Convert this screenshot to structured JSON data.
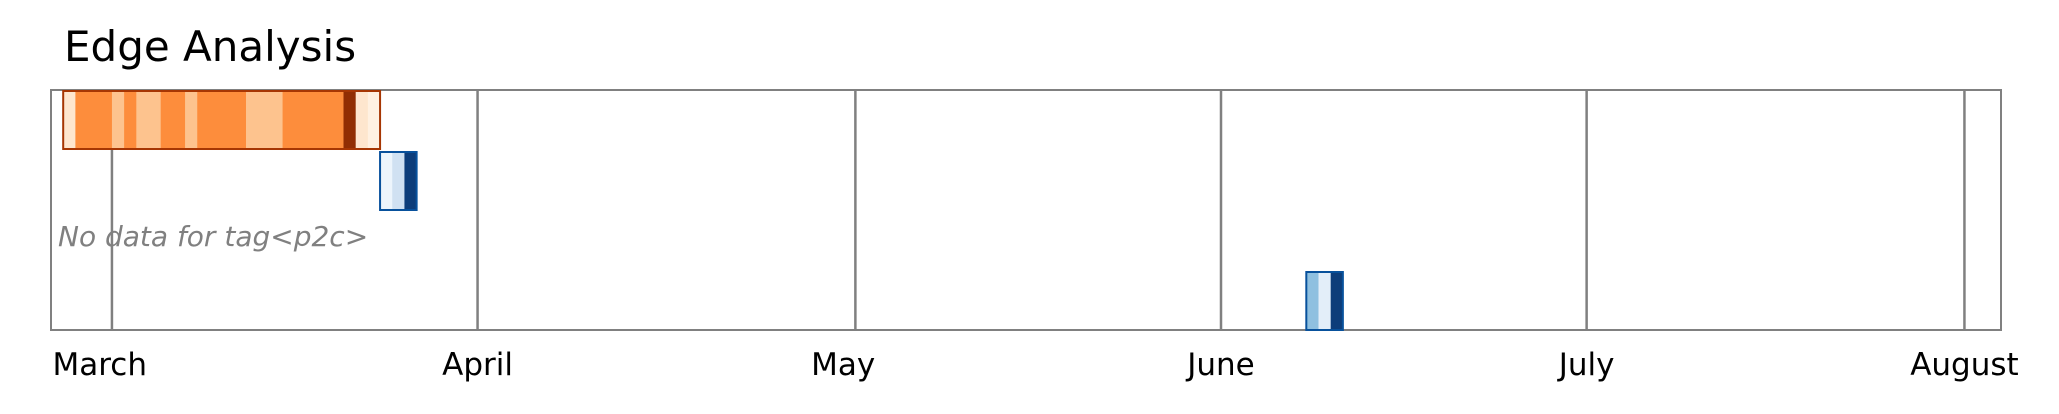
{
  "chart_data": {
    "type": "heatmap",
    "title": "Edge Analysis",
    "xlabel": "",
    "ylabel": "",
    "x_range": [
      "2024-02-26",
      "2024-08-04"
    ],
    "month_ticks": [
      {
        "label": "March",
        "date": "2024-03-01"
      },
      {
        "label": "April",
        "date": "2024-04-01"
      },
      {
        "label": "May",
        "date": "2024-05-01"
      },
      {
        "label": "June",
        "date": "2024-06-01"
      },
      {
        "label": "July",
        "date": "2024-07-01"
      },
      {
        "label": "August",
        "date": "2024-08-01"
      }
    ],
    "grid_lines": [
      "2024-03-02",
      "2024-04-01",
      "2024-05-02",
      "2024-06-01",
      "2024-07-01",
      "2024-08-01"
    ],
    "rows": [
      {
        "tag": "",
        "colormap": "Oranges",
        "border_color": "#a63603",
        "cells": [
          {
            "start": "2024-02-27",
            "end": "2024-02-28",
            "intensity": 0.1
          },
          {
            "start": "2024-02-28",
            "end": "2024-03-02",
            "intensity": 0.5
          },
          {
            "start": "2024-03-02",
            "end": "2024-03-03",
            "intensity": 0.3
          },
          {
            "start": "2024-03-03",
            "end": "2024-03-04",
            "intensity": 0.5
          },
          {
            "start": "2024-03-04",
            "end": "2024-03-06",
            "intensity": 0.3
          },
          {
            "start": "2024-03-06",
            "end": "2024-03-08",
            "intensity": 0.5
          },
          {
            "start": "2024-03-08",
            "end": "2024-03-09",
            "intensity": 0.3
          },
          {
            "start": "2024-03-09",
            "end": "2024-03-13",
            "intensity": 0.5
          },
          {
            "start": "2024-03-13",
            "end": "2024-03-16",
            "intensity": 0.3
          },
          {
            "start": "2024-03-16",
            "end": "2024-03-21",
            "intensity": 0.5
          },
          {
            "start": "2024-03-21",
            "end": "2024-03-22",
            "intensity": 0.95
          },
          {
            "start": "2024-03-22",
            "end": "2024-03-23",
            "intensity": 0.1
          },
          {
            "start": "2024-03-23",
            "end": "2024-03-24",
            "intensity": 0.03
          }
        ]
      },
      {
        "tag": "",
        "colormap": "Blues",
        "border_color": "#08519c",
        "cells": [
          {
            "start": "2024-03-24",
            "end": "2024-03-25",
            "intensity": 0.05
          },
          {
            "start": "2024-03-25",
            "end": "2024-03-26",
            "intensity": 0.2
          },
          {
            "start": "2024-03-26",
            "end": "2024-03-27",
            "intensity": 0.95
          }
        ]
      },
      {
        "tag": "p2c",
        "note": "No data for tag<p2c>",
        "cells": []
      },
      {
        "tag": "",
        "colormap": "Blues",
        "border_color": "#08519c",
        "cells": [
          {
            "start": "2024-06-08",
            "end": "2024-06-09",
            "intensity": 0.4
          },
          {
            "start": "2024-06-09",
            "end": "2024-06-10",
            "intensity": 0.1
          },
          {
            "start": "2024-06-10",
            "end": "2024-06-11",
            "intensity": 0.95
          }
        ]
      }
    ],
    "grid": true,
    "legend": "none"
  }
}
